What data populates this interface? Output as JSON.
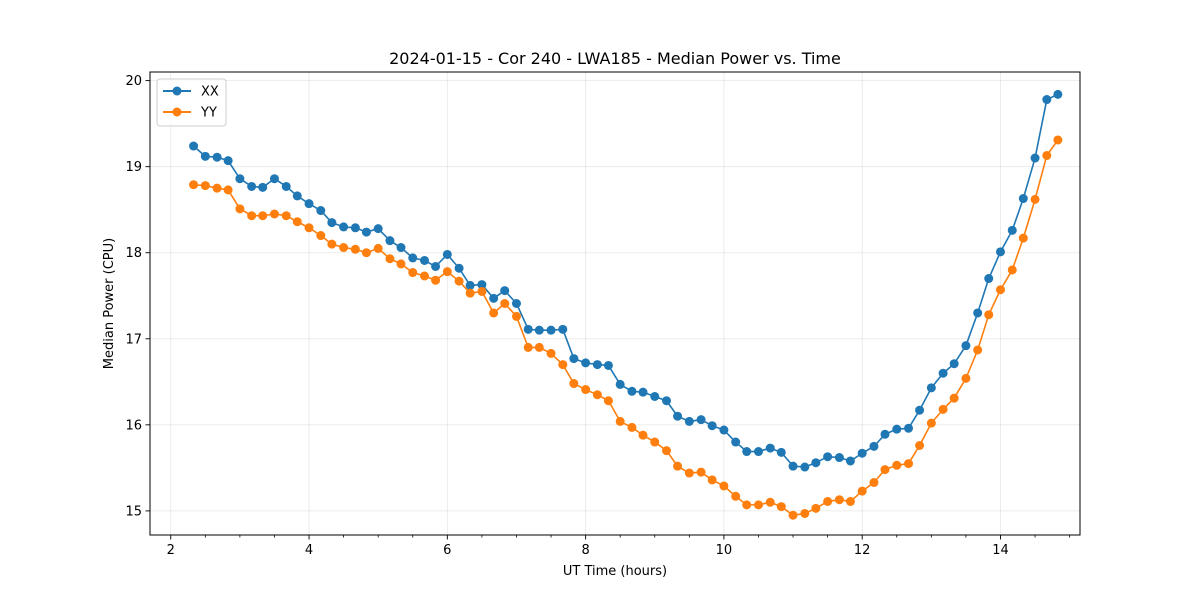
{
  "chart_data": {
    "type": "line",
    "title": "2024-01-15 - Cor 240 - LWA185 - Median Power vs. Time",
    "xlabel": "UT Time (hours)",
    "ylabel": "Median Power (CPU)",
    "xlim": [
      1.7,
      15.15
    ],
    "ylim": [
      14.72,
      20.1
    ],
    "xticks": [
      2,
      4,
      6,
      8,
      10,
      12,
      14
    ],
    "yticks": [
      15,
      16,
      17,
      18,
      19,
      20
    ],
    "grid": true,
    "legend_position": "top-left",
    "x": [
      2.33,
      2.5,
      2.67,
      2.83,
      3.0,
      3.17,
      3.33,
      3.5,
      3.67,
      3.83,
      4.0,
      4.17,
      4.33,
      4.5,
      4.67,
      4.83,
      5.0,
      5.17,
      5.33,
      5.5,
      5.67,
      5.83,
      6.0,
      6.17,
      6.33,
      6.5,
      6.67,
      6.83,
      7.0,
      7.17,
      7.33,
      7.5,
      7.67,
      7.83,
      8.0,
      8.17,
      8.33,
      8.5,
      8.67,
      8.83,
      9.0,
      9.17,
      9.33,
      9.5,
      9.67,
      9.83,
      10.0,
      10.17,
      10.33,
      10.5,
      10.67,
      10.83,
      11.0,
      11.17,
      11.33,
      11.5,
      11.67,
      11.83,
      12.0,
      12.17,
      12.33,
      12.5,
      12.67,
      12.83,
      13.0,
      13.17,
      13.33,
      13.5,
      13.67,
      13.83,
      14.0,
      14.17,
      14.33,
      14.5,
      14.67,
      14.83
    ],
    "series": [
      {
        "name": "XX",
        "color": "#1f77b4",
        "values": [
          19.24,
          19.12,
          19.11,
          19.07,
          18.86,
          18.77,
          18.76,
          18.86,
          18.77,
          18.66,
          18.57,
          18.49,
          18.35,
          18.3,
          18.29,
          18.24,
          18.28,
          18.14,
          18.06,
          17.94,
          17.91,
          17.84,
          17.98,
          17.82,
          17.62,
          17.63,
          17.47,
          17.56,
          17.41,
          17.11,
          17.1,
          17.1,
          17.11,
          16.77,
          16.72,
          16.7,
          16.69,
          16.47,
          16.39,
          16.38,
          16.33,
          16.28,
          16.1,
          16.04,
          16.06,
          15.99,
          15.94,
          15.8,
          15.69,
          15.69,
          15.73,
          15.68,
          15.52,
          15.51,
          15.56,
          15.63,
          15.62,
          15.58,
          15.67,
          15.75,
          15.89,
          15.95,
          15.96,
          16.17,
          16.43,
          16.6,
          16.71,
          16.92,
          17.3,
          17.7,
          18.01,
          18.26,
          18.63,
          19.1,
          19.78,
          19.84
        ]
      },
      {
        "name": "YY",
        "color": "#ff7f0e",
        "values": [
          18.79,
          18.78,
          18.75,
          18.73,
          18.51,
          18.43,
          18.43,
          18.45,
          18.43,
          18.36,
          18.29,
          18.2,
          18.1,
          18.06,
          18.04,
          18.0,
          18.05,
          17.93,
          17.87,
          17.77,
          17.73,
          17.68,
          17.78,
          17.67,
          17.53,
          17.55,
          17.3,
          17.41,
          17.26,
          16.9,
          16.9,
          16.83,
          16.7,
          16.48,
          16.41,
          16.35,
          16.28,
          16.04,
          15.97,
          15.88,
          15.8,
          15.7,
          15.52,
          15.44,
          15.45,
          15.36,
          15.29,
          15.17,
          15.07,
          15.07,
          15.1,
          15.05,
          14.95,
          14.97,
          15.03,
          15.11,
          15.13,
          15.11,
          15.23,
          15.33,
          15.48,
          15.53,
          15.55,
          15.76,
          16.02,
          16.18,
          16.31,
          16.54,
          16.87,
          17.28,
          17.57,
          17.8,
          18.17,
          18.62,
          19.13,
          19.31
        ]
      }
    ]
  }
}
